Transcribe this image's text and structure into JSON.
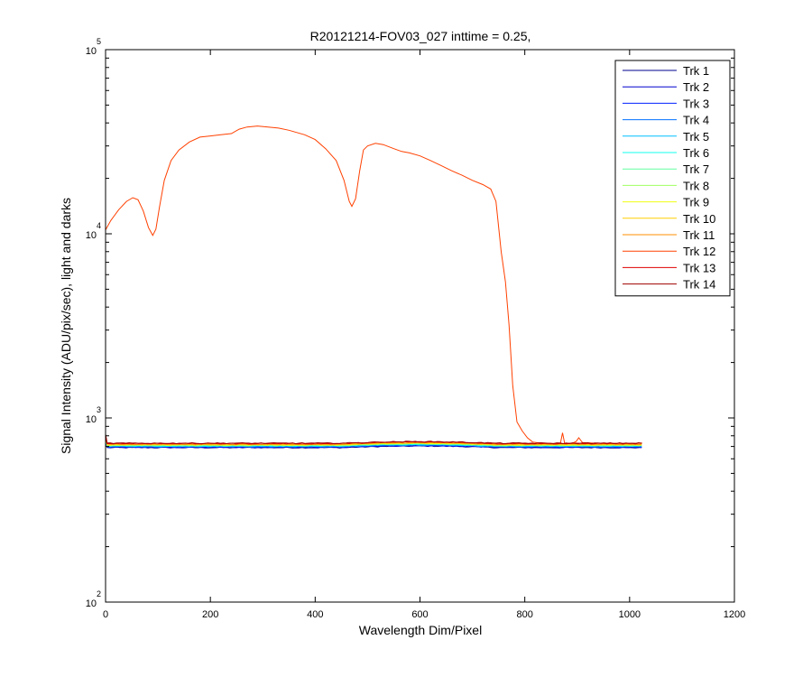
{
  "chart_data": {
    "type": "line",
    "title": "R20121214-FOV03_027 inttime = 0.25,",
    "xlabel": "Wavelength Dim/Pixel",
    "ylabel": "Signal Intensity (ADU/pix/sec), light and darks",
    "xlim": [
      0,
      1200
    ],
    "ylim": [
      100,
      100000
    ],
    "yscale": "log",
    "xticks": [
      "0",
      "200",
      "400",
      "600",
      "800",
      "1000",
      "1200"
    ],
    "yticks": [
      {
        "base": "10",
        "exp": "2"
      },
      {
        "base": "10",
        "exp": "3"
      },
      {
        "base": "10",
        "exp": "4"
      },
      {
        "base": "10",
        "exp": "5"
      }
    ],
    "grid": false,
    "legend_position": "top-right",
    "series": [
      {
        "name": "Trk 1",
        "color": "#00008f",
        "level": 690
      },
      {
        "name": "Trk 2",
        "color": "#0000cf",
        "level": 693
      },
      {
        "name": "Trk 3",
        "color": "#0020ff",
        "level": 696
      },
      {
        "name": "Trk 4",
        "color": "#0070ff",
        "level": 699
      },
      {
        "name": "Trk 5",
        "color": "#00c0ff",
        "level": 702
      },
      {
        "name": "Trk 6",
        "color": "#10ffef",
        "level": 705
      },
      {
        "name": "Trk 7",
        "color": "#60ff9f",
        "level": 708
      },
      {
        "name": "Trk 8",
        "color": "#a0ff5f",
        "level": 711
      },
      {
        "name": "Trk 9",
        "color": "#efff10",
        "level": 714
      },
      {
        "name": "Trk 10",
        "color": "#ffcf00",
        "level": 717
      },
      {
        "name": "Trk 11",
        "color": "#ff8f00",
        "level": 720
      },
      {
        "name": "Trk 12",
        "color": "#ff4000",
        "level": 723,
        "points": [
          [
            0,
            10500
          ],
          [
            10,
            11800
          ],
          [
            25,
            13500
          ],
          [
            40,
            15000
          ],
          [
            52,
            15700
          ],
          [
            62,
            15300
          ],
          [
            72,
            13300
          ],
          [
            82,
            10800
          ],
          [
            90,
            9800
          ],
          [
            96,
            10600
          ],
          [
            103,
            14000
          ],
          [
            112,
            19500
          ],
          [
            125,
            25000
          ],
          [
            140,
            28500
          ],
          [
            160,
            31500
          ],
          [
            180,
            33500
          ],
          [
            200,
            34000
          ],
          [
            220,
            34500
          ],
          [
            240,
            35000
          ],
          [
            255,
            37000
          ],
          [
            270,
            38000
          ],
          [
            290,
            38500
          ],
          [
            310,
            38000
          ],
          [
            330,
            37500
          ],
          [
            350,
            36500
          ],
          [
            380,
            34500
          ],
          [
            400,
            32500
          ],
          [
            420,
            29000
          ],
          [
            440,
            25000
          ],
          [
            455,
            19500
          ],
          [
            465,
            15000
          ],
          [
            470,
            14100
          ],
          [
            477,
            15500
          ],
          [
            485,
            22000
          ],
          [
            492,
            28500
          ],
          [
            500,
            30000
          ],
          [
            515,
            31000
          ],
          [
            530,
            30500
          ],
          [
            550,
            29000
          ],
          [
            565,
            28000
          ],
          [
            580,
            27500
          ],
          [
            600,
            26500
          ],
          [
            620,
            25000
          ],
          [
            640,
            23500
          ],
          [
            660,
            22000
          ],
          [
            680,
            20800
          ],
          [
            700,
            19500
          ],
          [
            720,
            18500
          ],
          [
            735,
            17500
          ],
          [
            745,
            15000
          ],
          [
            755,
            8000
          ],
          [
            763,
            5500
          ],
          [
            770,
            3200
          ],
          [
            777,
            1500
          ],
          [
            785,
            950
          ],
          [
            795,
            850
          ],
          [
            805,
            780
          ],
          [
            815,
            740
          ],
          [
            830,
            730
          ],
          [
            860,
            725
          ],
          [
            868,
            730
          ],
          [
            872,
            830
          ],
          [
            876,
            730
          ],
          [
            890,
            728
          ],
          [
            898,
            745
          ],
          [
            903,
            780
          ],
          [
            910,
            735
          ],
          [
            930,
            730
          ],
          [
            960,
            728
          ],
          [
            1000,
            727
          ],
          [
            1024,
            730
          ]
        ]
      },
      {
        "name": "Trk 13",
        "color": "#df0000",
        "level": 726
      },
      {
        "name": "Trk 14",
        "color": "#9f0000",
        "level": 729
      }
    ]
  }
}
